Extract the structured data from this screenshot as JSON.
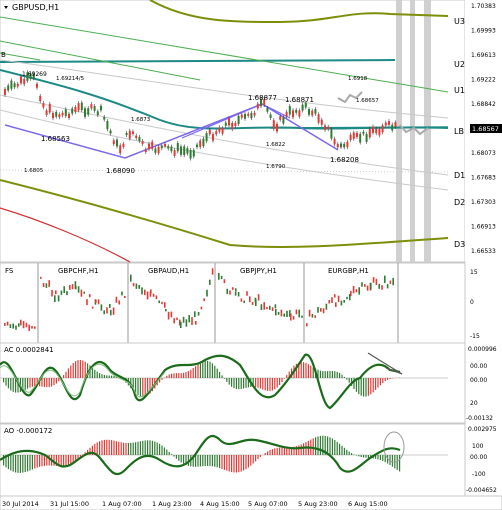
{
  "main": {
    "symbol_title": "GBPUSD,H1",
    "price_ticks": [
      "1.70383",
      "1.69993",
      "1.69613",
      "1.69222",
      "1.68842",
      "1.68453",
      "1.68073",
      "1.67683",
      "1.67303",
      "1.66913",
      "1.66533"
    ],
    "current_price": "1.68567",
    "level_labels": {
      "u3": "U3",
      "u2": "U2",
      "u1": "U1",
      "lb": "LB",
      "d1": "D1",
      "d2": "D2",
      "d3": "D3"
    },
    "swing_labels": {
      "p1": "1.69269",
      "p2": "1.69214/5",
      "p3": "1.68563",
      "p4": "1.6873",
      "p5": "1.68090",
      "p6": "1.68877",
      "p7": "1.68871",
      "p8": "1.68657",
      "p9": "1.6918",
      "p10": "1.6822",
      "p11": "1.68208",
      "p12": "1.6790",
      "p13": "1.6805"
    },
    "left_marker": "B"
  },
  "mini": {
    "label_left": "FS",
    "titles": [
      "GBPCHF,H1",
      "GBPAUD,H1",
      "GBPJPY,H1",
      "EURGBP,H1"
    ],
    "ticks": [
      "15",
      "0",
      "-15"
    ]
  },
  "ac": {
    "title": "AC 0.0002841",
    "ticks": [
      "0.000996",
      "00.00",
      "00.00",
      "20",
      "-0.00132"
    ]
  },
  "ao": {
    "title": "AO -0.000172",
    "ticks": [
      "0.002975",
      "100",
      "00.00",
      "-100",
      "-0.004652"
    ]
  },
  "time_axis": [
    "30 Jul 2014",
    "31 Jul 15:00",
    "1 Aug 07:00",
    "1 Aug 23:00",
    "4 Aug 15:00",
    "5 Aug 07:00",
    "5 Aug 23:00",
    "6 Aug 15:00"
  ],
  "colors": {
    "bull": "#2e7d32",
    "bear": "#e53935",
    "channel": "#008080",
    "olive": "#7d8f0a",
    "purple": "#7b68ee",
    "red_line": "#d32f2f",
    "tag": "#1a1a8c"
  }
}
